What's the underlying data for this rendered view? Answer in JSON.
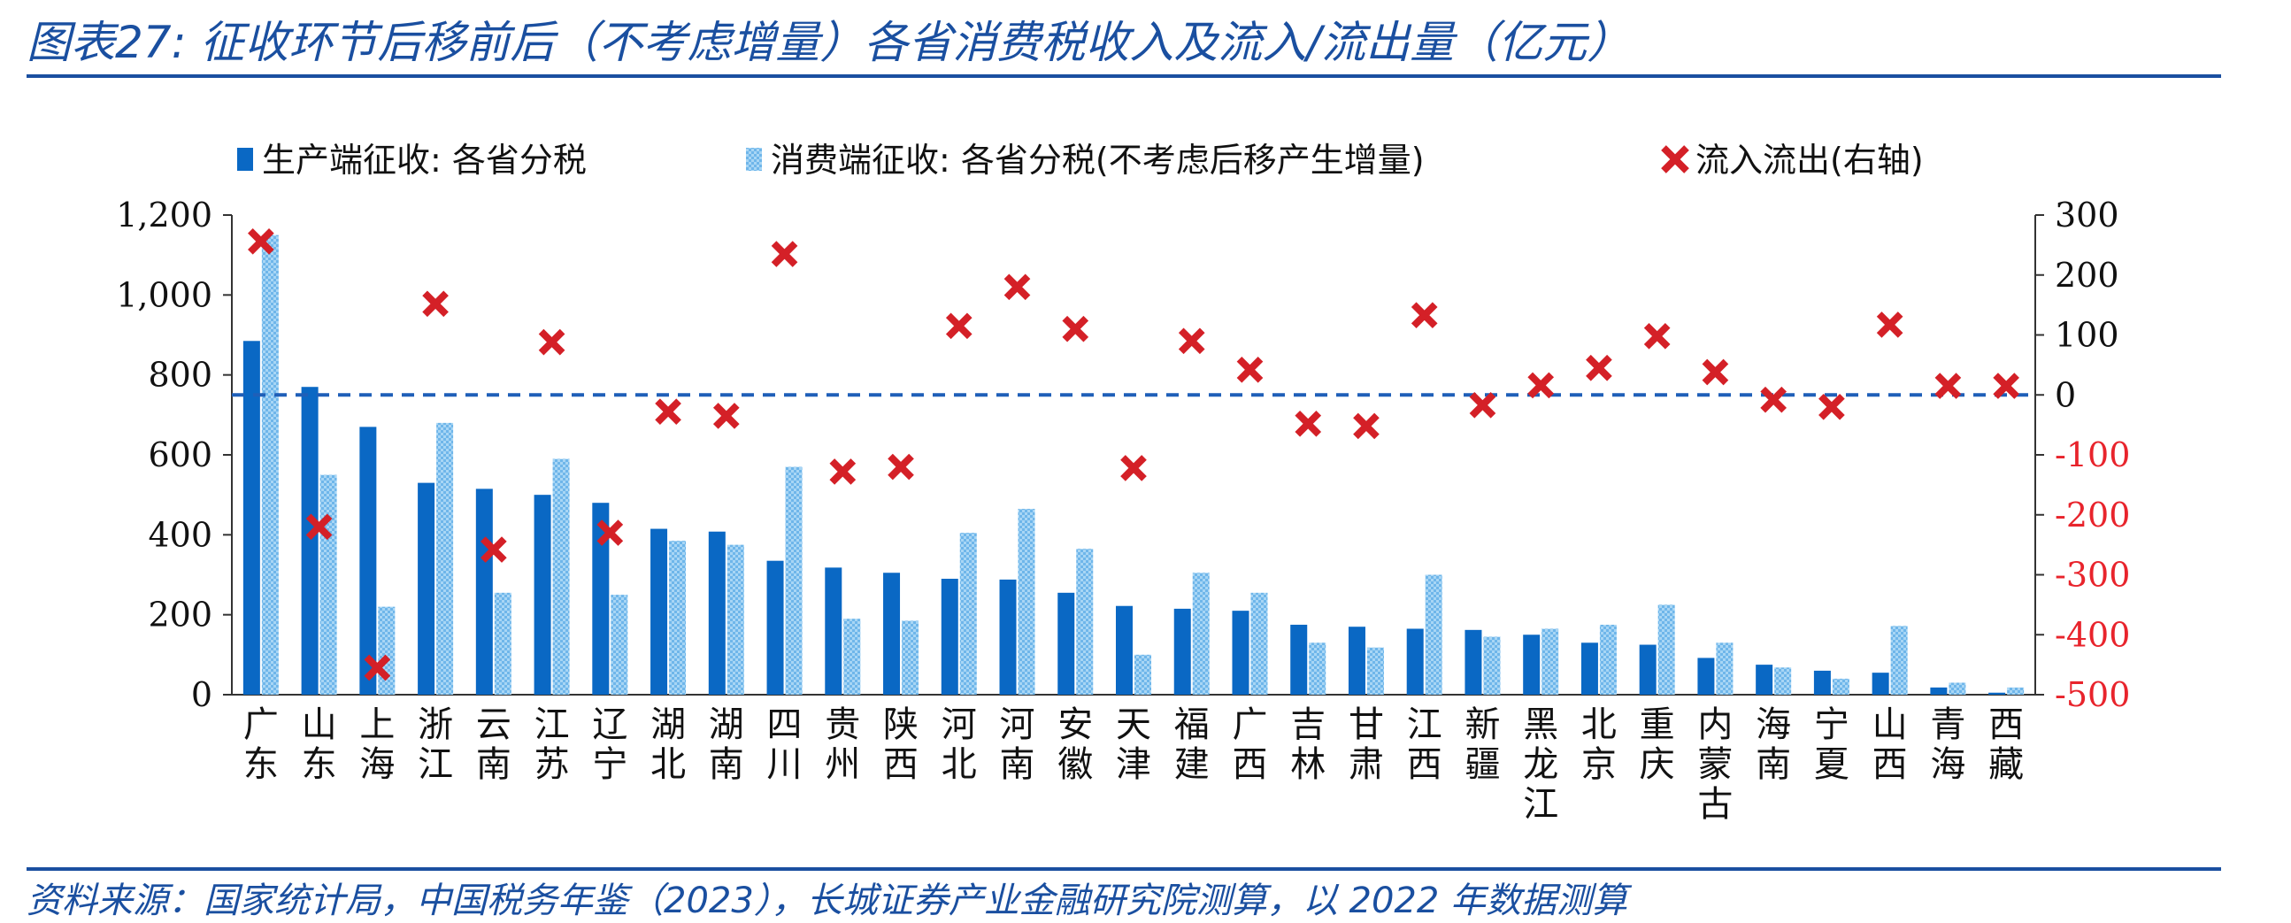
{
  "title": "图表27: 征收环节后移前后（不考虑增量）各省消费税收入及流入/流出量（亿元）",
  "source": "资料来源：国家统计局，中国税务年鉴（2023），长城证券产业金融研究院测算，以 2022 年数据测算",
  "colors": {
    "title": "#1a4fa0",
    "series1": "#0a68c4",
    "series2": "#8cc8f0",
    "cross": "#d42027",
    "neg_tick": "#e8242c",
    "baseline": "#1f5fb8"
  },
  "chart_data": {
    "type": "bar",
    "categories": [
      "广东",
      "山东",
      "上海",
      "浙江",
      "云南",
      "江苏",
      "辽宁",
      "湖北",
      "湖南",
      "四川",
      "贵州",
      "陕西",
      "河北",
      "河南",
      "安徽",
      "天津",
      "福建",
      "广西",
      "吉林",
      "甘肃",
      "江西",
      "新疆",
      "黑龙江",
      "北京",
      "重庆",
      "内蒙古",
      "海南",
      "宁夏",
      "山西",
      "青海",
      "西藏"
    ],
    "series": [
      {
        "name": "生产端征收: 各省分税",
        "axis": "left",
        "values": [
          885,
          770,
          670,
          530,
          515,
          500,
          480,
          415,
          408,
          335,
          318,
          305,
          290,
          288,
          255,
          222,
          215,
          210,
          175,
          170,
          165,
          162,
          150,
          130,
          125,
          92,
          75,
          60,
          55,
          18,
          5
        ]
      },
      {
        "name": "消费端征收: 各省分税(不考虑后移产生增量)",
        "axis": "left",
        "values": [
          1150,
          550,
          220,
          680,
          255,
          590,
          250,
          385,
          375,
          570,
          190,
          185,
          405,
          465,
          365,
          100,
          305,
          255,
          130,
          118,
          300,
          145,
          165,
          175,
          225,
          130,
          68,
          40,
          172,
          30,
          18
        ]
      },
      {
        "name": "流入流出(右轴)",
        "axis": "right",
        "type": "scatter",
        "values": [
          256,
          -220,
          -455,
          152,
          -258,
          88,
          -230,
          -28,
          -35,
          235,
          -128,
          -120,
          115,
          180,
          110,
          -122,
          90,
          42,
          -48,
          -52,
          133,
          -17,
          16,
          45,
          98,
          38,
          -8,
          -20,
          117,
          15,
          15
        ]
      }
    ],
    "yleft": {
      "min": 0,
      "max": 1200,
      "ticks": [
        "0",
        "200",
        "400",
        "600",
        "800",
        "1,000",
        "1,200"
      ]
    },
    "yright": {
      "min": -500,
      "max": 300,
      "ticks": [
        "-500",
        "-400",
        "-300",
        "-200",
        "-100",
        "0",
        "100",
        "200",
        "300"
      ]
    },
    "reference_line": {
      "axis": "right",
      "value": 0,
      "style": "dashed"
    },
    "legend_placement": "top"
  }
}
